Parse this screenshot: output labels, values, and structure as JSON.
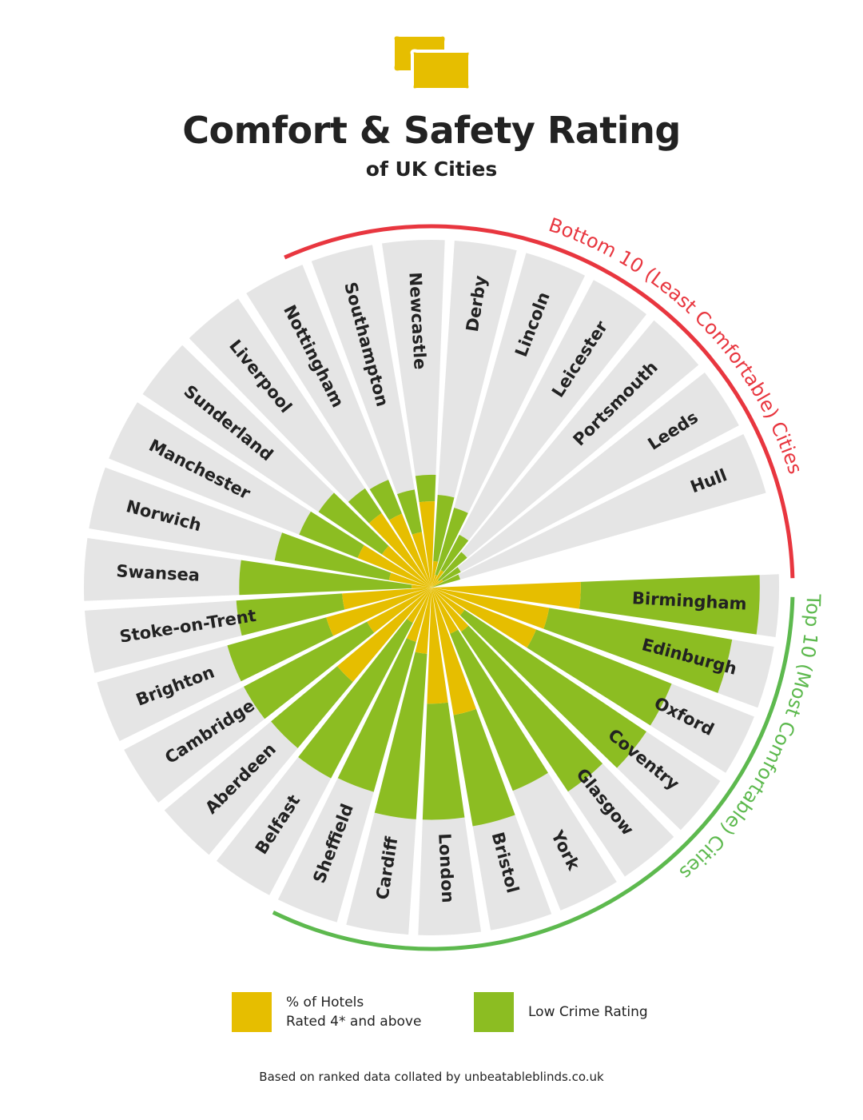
{
  "header": {
    "title": "Comfort & Safety Rating",
    "subtitle": "of UK Cities"
  },
  "colors": {
    "hotels": "#E6BE00",
    "crime": "#8CBD22",
    "track": "#E5E5E5",
    "bottom_arc": "#E8363F",
    "top_arc": "#5DB94E",
    "text": "#222222"
  },
  "arc_labels": {
    "bottom": "Bottom 10 (Least Comfortable) Cities",
    "top": "Top 10 (Most Comfortable) Cities"
  },
  "legend": {
    "hotels_line1": "% of Hotels",
    "hotels_line2": "Rated 4* and above",
    "crime": "Low Crime Rating"
  },
  "source": "Based on ranked data collated by unbeatableblinds.co.uk",
  "chart_data": {
    "type": "radial-stacked-bar",
    "max": 100,
    "series": [
      {
        "name": "% of Hotels Rated 4* and above",
        "key": "hotels"
      },
      {
        "name": "Low Crime Rating",
        "key": "crime"
      }
    ],
    "categories": [
      {
        "city": "Birmingham",
        "hotels": 45,
        "crime": 54
      },
      {
        "city": "Edinburgh",
        "hotels": 36,
        "crime": 56
      },
      {
        "city": "Oxford",
        "hotels": 34,
        "crime": 44
      },
      {
        "city": "Coventry",
        "hotels": 12,
        "crime": 66
      },
      {
        "city": "Glasgow",
        "hotels": 16,
        "crime": 58
      },
      {
        "city": "York",
        "hotels": 15,
        "crime": 51
      },
      {
        "city": "Bristol",
        "hotels": 39,
        "crime": 34
      },
      {
        "city": "London",
        "hotels": 35,
        "crime": 35
      },
      {
        "city": "Cardiff",
        "hotels": 20,
        "crime": 50
      },
      {
        "city": "Sheffield",
        "hotels": 17,
        "crime": 47
      },
      {
        "city": "Belfast",
        "hotels": 12,
        "crime": 53
      },
      {
        "city": "Aberdeen",
        "hotels": 37,
        "crime": 26
      },
      {
        "city": "Cambridge",
        "hotels": 22,
        "crime": 42
      },
      {
        "city": "Brighton",
        "hotels": 33,
        "crime": 31
      },
      {
        "city": "Stoke-on-Trent",
        "hotels": 27,
        "crime": 32
      },
      {
        "city": "Swansea",
        "hotels": 6,
        "crime": 52
      },
      {
        "city": "Norwich",
        "hotels": 13,
        "crime": 35
      },
      {
        "city": "Manchester",
        "hotels": 24,
        "crime": 19
      },
      {
        "city": "Sunderland",
        "hotels": 18,
        "crime": 23
      },
      {
        "city": "Liverpool",
        "hotels": 27,
        "crime": 9
      },
      {
        "city": "Nottingham",
        "hotels": 24,
        "crime": 11
      },
      {
        "city": "Southampton",
        "hotels": 17,
        "crime": 13
      },
      {
        "city": "Newcastle",
        "hotels": 26,
        "crime": 8
      },
      {
        "city": "Derby",
        "hotels": 8,
        "crime": 20
      },
      {
        "city": "Lincoln",
        "hotels": 4,
        "crime": 21
      },
      {
        "city": "Leicester",
        "hotels": 6,
        "crime": 12
      },
      {
        "city": "Portsmouth",
        "hotels": 3,
        "crime": 11
      },
      {
        "city": "Leeds",
        "hotels": 4,
        "crime": 6
      },
      {
        "city": "Hull",
        "hotels": 0,
        "crime": 9
      }
    ]
  }
}
